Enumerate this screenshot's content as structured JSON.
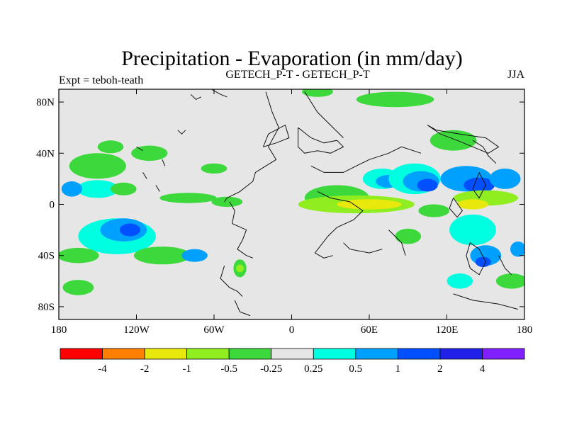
{
  "chart_data": {
    "type": "heatmap",
    "title": "Precipitation - Evaporation (in mm/day)",
    "subtitle_left": "Expt = teboh-teath",
    "subtitle_center": "GETECH_P-T - GETECH_P-T",
    "subtitle_right": "JJA",
    "xlabel": "",
    "ylabel": "",
    "xlim": [
      -180,
      180
    ],
    "ylim": [
      -90,
      90
    ],
    "x_ticks": [
      {
        "value": -180,
        "label": "180"
      },
      {
        "value": -120,
        "label": "120W"
      },
      {
        "value": -60,
        "label": "60W"
      },
      {
        "value": 0,
        "label": "0"
      },
      {
        "value": 60,
        "label": "60E"
      },
      {
        "value": 120,
        "label": "120E"
      },
      {
        "value": 180,
        "label": "180"
      }
    ],
    "y_ticks": [
      {
        "value": 80,
        "label": "80N"
      },
      {
        "value": 40,
        "label": "40N"
      },
      {
        "value": 0,
        "label": "0"
      },
      {
        "value": -40,
        "label": "40S"
      },
      {
        "value": -80,
        "label": "80S"
      }
    ],
    "background_color": "#e6e6e6",
    "colorbar": {
      "colors": [
        "#ff0000",
        "#ff7f00",
        "#e8e80c",
        "#90ee20",
        "#3cd83c",
        "#e6e6e6",
        "#00ffe0",
        "#00a0ff",
        "#0050ff",
        "#2020e8",
        "#8020ff"
      ],
      "labels": [
        "-4",
        "-2",
        "-1",
        "-0.5",
        "-0.25",
        "0.25",
        "0.5",
        "1",
        "2",
        "4"
      ]
    },
    "contour_regions": [
      {
        "lon": -150,
        "lat": 30,
        "rlon": 22,
        "rlat": 10,
        "level": -0.25
      },
      {
        "lon": -140,
        "lat": 45,
        "rlon": 10,
        "rlat": 5,
        "level": -0.25
      },
      {
        "lon": -110,
        "lat": 40,
        "rlon": 14,
        "rlat": 6,
        "level": -0.25
      },
      {
        "lon": -150,
        "lat": 12,
        "rlon": 16,
        "rlat": 7,
        "level": 0.5
      },
      {
        "lon": -170,
        "lat": 12,
        "rlon": 8,
        "rlat": 6,
        "level": 1
      },
      {
        "lon": -130,
        "lat": 12,
        "rlon": 10,
        "rlat": 5,
        "level": -0.25
      },
      {
        "lon": -80,
        "lat": 5,
        "rlon": 22,
        "rlat": 4,
        "level": -0.25
      },
      {
        "lon": -50,
        "lat": 2,
        "rlon": 12,
        "rlat": 4,
        "level": -0.25
      },
      {
        "lon": -135,
        "lat": -25,
        "rlon": 30,
        "rlat": 14,
        "level": 0.5
      },
      {
        "lon": -130,
        "lat": -20,
        "rlon": 18,
        "rlat": 9,
        "level": 1
      },
      {
        "lon": -125,
        "lat": -20,
        "rlon": 8,
        "rlat": 5,
        "level": 2
      },
      {
        "lon": -165,
        "lat": -40,
        "rlon": 16,
        "rlat": 6,
        "level": -0.25
      },
      {
        "lon": -100,
        "lat": -40,
        "rlon": 22,
        "rlat": 7,
        "level": -0.25
      },
      {
        "lon": -75,
        "lat": -40,
        "rlon": 10,
        "rlat": 5,
        "level": 1
      },
      {
        "lon": -165,
        "lat": -65,
        "rlon": 12,
        "rlat": 6,
        "level": -0.25
      },
      {
        "lon": -40,
        "lat": -50,
        "rlon": 5,
        "rlat": 7,
        "level": -0.25
      },
      {
        "lon": -40,
        "lat": -50,
        "rlon": 3,
        "rlat": 3,
        "level": -0.5
      },
      {
        "lon": -60,
        "lat": 28,
        "rlon": 10,
        "rlat": 4,
        "level": -0.25
      },
      {
        "lon": 20,
        "lat": 88,
        "rlon": 12,
        "rlat": 4,
        "level": -0.25
      },
      {
        "lon": 80,
        "lat": 82,
        "rlon": 30,
        "rlat": 6,
        "level": -0.25
      },
      {
        "lon": 35,
        "lat": 5,
        "rlon": 25,
        "rlat": 10,
        "level": -0.25
      },
      {
        "lon": 50,
        "lat": 0,
        "rlon": 45,
        "rlat": 7,
        "level": -0.5
      },
      {
        "lon": 60,
        "lat": 0,
        "rlon": 25,
        "rlat": 4,
        "level": -1
      },
      {
        "lon": 70,
        "lat": 20,
        "rlon": 15,
        "rlat": 8,
        "level": 0.5
      },
      {
        "lon": 75,
        "lat": 18,
        "rlon": 10,
        "rlat": 5,
        "level": 1
      },
      {
        "lon": 95,
        "lat": 20,
        "rlon": 20,
        "rlat": 12,
        "level": 0.5
      },
      {
        "lon": 100,
        "lat": 18,
        "rlon": 14,
        "rlat": 8,
        "level": 1
      },
      {
        "lon": 105,
        "lat": 15,
        "rlon": 8,
        "rlat": 5,
        "level": 2
      },
      {
        "lon": 135,
        "lat": 20,
        "rlon": 20,
        "rlat": 10,
        "level": 1
      },
      {
        "lon": 145,
        "lat": 15,
        "rlon": 12,
        "rlat": 6,
        "level": 2
      },
      {
        "lon": 165,
        "lat": 20,
        "rlon": 12,
        "rlat": 8,
        "level": 1
      },
      {
        "lon": 125,
        "lat": 50,
        "rlon": 18,
        "rlat": 8,
        "level": -0.25
      },
      {
        "lon": 150,
        "lat": 5,
        "rlon": 25,
        "rlat": 6,
        "level": -0.5
      },
      {
        "lon": 140,
        "lat": 0,
        "rlon": 12,
        "rlat": 4,
        "level": -1
      },
      {
        "lon": 110,
        "lat": -5,
        "rlon": 12,
        "rlat": 5,
        "level": -0.25
      },
      {
        "lon": 140,
        "lat": -20,
        "rlon": 18,
        "rlat": 12,
        "level": 0.5
      },
      {
        "lon": 150,
        "lat": -40,
        "rlon": 12,
        "rlat": 8,
        "level": 1
      },
      {
        "lon": 148,
        "lat": -45,
        "rlon": 6,
        "rlat": 4,
        "level": 2
      },
      {
        "lon": 170,
        "lat": -60,
        "rlon": 12,
        "rlat": 6,
        "level": -0.25
      },
      {
        "lon": 130,
        "lat": -60,
        "rlon": 10,
        "rlat": 6,
        "level": 0.5
      },
      {
        "lon": 175,
        "lat": -35,
        "rlon": 6,
        "rlat": 6,
        "level": 1
      },
      {
        "lon": 90,
        "lat": -25,
        "rlon": 10,
        "rlat": 6,
        "level": -0.25
      }
    ],
    "coastlines": [
      [
        [
          -20,
          88
        ],
        [
          -15,
          72
        ],
        [
          -10,
          60
        ],
        [
          -18,
          45
        ],
        [
          -12,
          35
        ],
        [
          -28,
          25
        ],
        [
          -30,
          18
        ],
        [
          -40,
          10
        ],
        [
          -50,
          5
        ],
        [
          -52,
          2
        ]
      ],
      [
        [
          -48,
          2
        ],
        [
          -44,
          -5
        ],
        [
          -46,
          -15
        ],
        [
          -35,
          -20
        ],
        [
          -38,
          -28
        ],
        [
          -42,
          -35
        ],
        [
          -35,
          -40
        ],
        [
          -30,
          -42
        ]
      ],
      [
        [
          -52,
          -48
        ],
        [
          -55,
          -58
        ],
        [
          -48,
          -65
        ],
        [
          -42,
          -68
        ],
        [
          -38,
          -72
        ]
      ],
      [
        [
          -44,
          -75
        ],
        [
          -40,
          -84
        ],
        [
          -32,
          -87
        ]
      ],
      [
        [
          -22,
          45
        ],
        [
          -18,
          55
        ],
        [
          -5,
          62
        ],
        [
          -2,
          52
        ],
        [
          -12,
          48
        ],
        [
          -22,
          45
        ]
      ],
      [
        [
          5,
          60
        ],
        [
          15,
          52
        ],
        [
          25,
          48
        ],
        [
          35,
          50
        ],
        [
          40,
          45
        ],
        [
          30,
          40
        ],
        [
          20,
          42
        ],
        [
          10,
          40
        ],
        [
          5,
          45
        ],
        [
          5,
          60
        ]
      ],
      [
        [
          10,
          88
        ],
        [
          20,
          72
        ],
        [
          30,
          62
        ],
        [
          40,
          52
        ]
      ],
      [
        [
          15,
          30
        ],
        [
          25,
          25
        ],
        [
          40,
          25
        ],
        [
          50,
          30
        ],
        [
          60,
          35
        ],
        [
          75,
          40
        ],
        [
          85,
          45
        ],
        [
          100,
          40
        ]
      ],
      [
        [
          20,
          10
        ],
        [
          30,
          5
        ],
        [
          45,
          2
        ],
        [
          55,
          -5
        ],
        [
          48,
          -12
        ],
        [
          35,
          -18
        ],
        [
          28,
          -25
        ],
        [
          18,
          -38
        ],
        [
          25,
          -42
        ],
        [
          32,
          -40
        ]
      ],
      [
        [
          40,
          -30
        ],
        [
          45,
          -35
        ],
        [
          60,
          -38
        ],
        [
          70,
          -35
        ]
      ],
      [
        [
          75,
          -20
        ],
        [
          85,
          -30
        ],
        [
          88,
          -40
        ]
      ],
      [
        [
          105,
          62
        ],
        [
          112,
          58
        ],
        [
          130,
          55
        ],
        [
          150,
          52
        ],
        [
          160,
          45
        ],
        [
          152,
          40
        ],
        [
          140,
          45
        ],
        [
          128,
          50
        ],
        [
          115,
          55
        ],
        [
          105,
          62
        ]
      ],
      [
        [
          140,
          50
        ],
        [
          148,
          45
        ],
        [
          152,
          38
        ],
        [
          158,
          32
        ]
      ],
      [
        [
          145,
          25
        ],
        [
          150,
          15
        ],
        [
          145,
          5
        ],
        [
          140,
          12
        ],
        [
          145,
          25
        ]
      ],
      [
        [
          125,
          5
        ],
        [
          132,
          -5
        ],
        [
          128,
          -10
        ],
        [
          122,
          -3
        ],
        [
          125,
          5
        ]
      ],
      [
        [
          138,
          -30
        ],
        [
          145,
          -35
        ],
        [
          150,
          -45
        ],
        [
          145,
          -55
        ],
        [
          138,
          -50
        ],
        [
          135,
          -40
        ],
        [
          138,
          -30
        ]
      ],
      [
        [
          160,
          -40
        ],
        [
          165,
          -50
        ],
        [
          170,
          -55
        ]
      ],
      [
        [
          125,
          -70
        ],
        [
          140,
          -75
        ],
        [
          160,
          -78
        ],
        [
          175,
          -82
        ]
      ],
      [
        [
          -62,
          90
        ],
        [
          -55,
          86
        ],
        [
          -50,
          84
        ]
      ],
      [
        [
          -78,
          86
        ],
        [
          -74,
          82
        ],
        [
          -70,
          84
        ]
      ],
      [
        [
          -88,
          58
        ],
        [
          -85,
          55
        ],
        [
          -82,
          58
        ]
      ],
      [
        [
          -120,
          45
        ],
        [
          -115,
          42
        ]
      ],
      [
        [
          -100,
          35
        ],
        [
          -98,
          30
        ]
      ],
      [
        [
          -115,
          25
        ],
        [
          -112,
          20
        ]
      ],
      [
        [
          -105,
          15
        ],
        [
          -102,
          10
        ]
      ]
    ]
  }
}
